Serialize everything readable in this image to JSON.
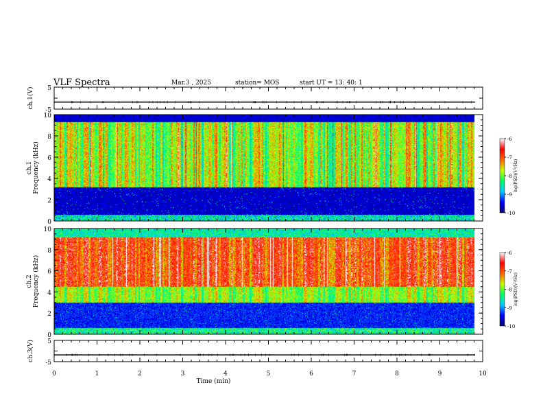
{
  "header": {
    "title": "VLF Spectra",
    "date": "Mar.3  , 2025",
    "station": "station= MOS",
    "start_ut": "start UT =  13: 40: 1"
  },
  "chart_data": [
    {
      "type": "line",
      "panel": "ch1-waveform",
      "ylabel": "ch.1(V)",
      "ylim": [
        -5,
        5
      ],
      "yticks": [
        "5",
        "-5"
      ],
      "x": [
        0,
        9.82
      ],
      "series": [
        {
          "values": [
            -1.8,
            -1.8
          ]
        }
      ]
    },
    {
      "type": "heatmap",
      "panel": "ch1-spectrogram",
      "ylabel": "ch.1\nFrequency (kHz)",
      "ylabel_lines": [
        "ch.1",
        "Frequency (kHz)"
      ],
      "ylim": [
        0,
        10
      ],
      "yticks": [
        "0",
        "2",
        "4",
        "6",
        "8",
        "10"
      ],
      "xlim": [
        0,
        10
      ],
      "colorbar": {
        "label": "log(PSD)(V²/Hz)",
        "range": [
          -10,
          -6
        ],
        "ticks": [
          "-6",
          "-7",
          "-8",
          "-9",
          "-10"
        ]
      }
    },
    {
      "type": "heatmap",
      "panel": "ch2-spectrogram",
      "ylabel": "ch.2\nFrequency (kHz)",
      "ylabel_lines": [
        "ch.2",
        "Frequency (kHz)"
      ],
      "ylim": [
        0,
        10
      ],
      "yticks": [
        "0",
        "2",
        "4",
        "6",
        "8",
        "10"
      ],
      "xlim": [
        0,
        10
      ],
      "colorbar": {
        "label": "log(PSD)(V²/Hz)",
        "range": [
          -10,
          -6
        ],
        "ticks": [
          "-6",
          "-7",
          "-8",
          "-9",
          "-10"
        ]
      }
    },
    {
      "type": "line",
      "panel": "ch3-waveform",
      "ylabel": "ch.3(V)",
      "ylim": [
        -5,
        5
      ],
      "yticks": [
        "5",
        "-5"
      ],
      "x": [
        0,
        9.82
      ],
      "series": [
        {
          "values": [
            -1.8,
            -1.8
          ]
        }
      ]
    }
  ],
  "xaxis": {
    "label": "Time  (min)",
    "ticks": [
      "0",
      "1",
      "2",
      "3",
      "4",
      "5",
      "6",
      "7",
      "8",
      "9",
      "10"
    ],
    "range": [
      0,
      10
    ]
  },
  "colors": {
    "colormap": [
      "#00006e",
      "#0000ff",
      "#00c8ff",
      "#00ff64",
      "#c8ff00",
      "#ff6400",
      "#ff0000",
      "#ffffff"
    ]
  }
}
